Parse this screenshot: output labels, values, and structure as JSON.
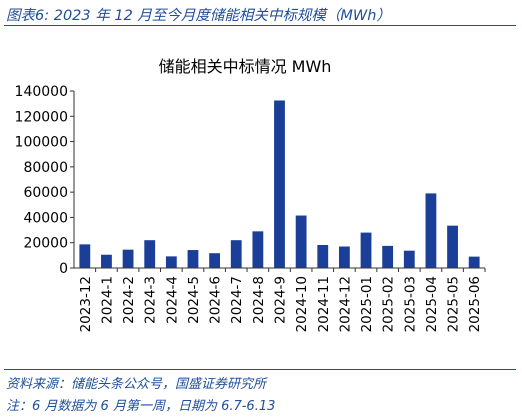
{
  "figure": {
    "title": "图表6: 2023 年 12 月至今月度储能相关中标规模（MWh）",
    "source": "资料来源：储能头条公众号，国盛证券研究所",
    "note": "注：6 月数据为 6 月第一周，日期为 6.7-6.13"
  },
  "colors": {
    "bar": "#1b3f99",
    "accent_text": "#1f4e9a",
    "axis": "#333333"
  },
  "chart_data": {
    "type": "bar",
    "title": "储能相关中标情况 MWh",
    "xlabel": "",
    "ylabel": "",
    "categories": [
      "2023-12",
      "2024-1",
      "2024-2",
      "2024-3",
      "2024-4",
      "2024-5",
      "2024-6",
      "2024-7",
      "2024-8",
      "2024-9",
      "2024-10",
      "2024-11",
      "2024-12",
      "2025-01",
      "2025-02",
      "2025-03",
      "2025-04",
      "2025-05",
      "2025-06"
    ],
    "values": [
      18700,
      10500,
      14500,
      22000,
      9200,
      14200,
      11700,
      22000,
      29000,
      132500,
      41500,
      18200,
      17000,
      28000,
      17500,
      13700,
      59000,
      33500,
      9000
    ],
    "ylim": [
      0,
      140000
    ],
    "yticks": [
      0,
      20000,
      40000,
      60000,
      80000,
      100000,
      120000,
      140000
    ],
    "grid": false,
    "legend": "none"
  }
}
